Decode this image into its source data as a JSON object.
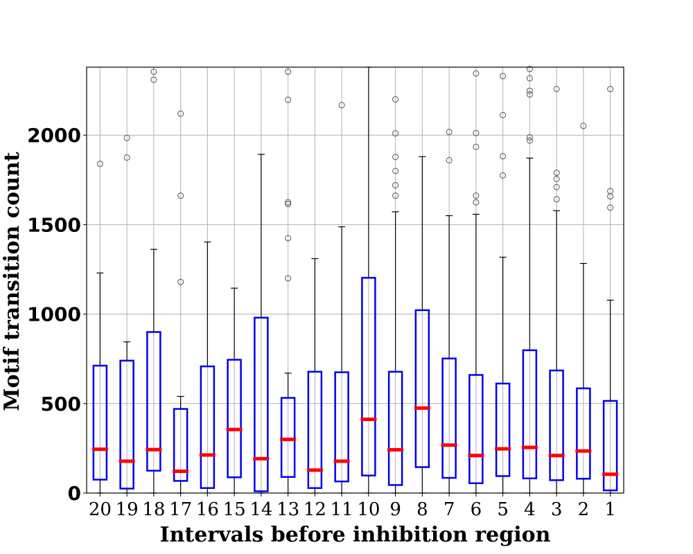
{
  "chart_data": {
    "type": "box",
    "xlabel": "Intervals before inhibition region",
    "ylabel": "Motif transition count",
    "ylim": [
      0,
      2380
    ],
    "yticks": [
      0,
      500,
      1000,
      1500,
      2000
    ],
    "grid": true,
    "colors": {
      "box": "#0000ee",
      "median": "#ff0000",
      "whisker": "#000000",
      "outlier": "#555555",
      "grid": "#b0b0b0"
    },
    "categories": [
      "20",
      "19",
      "18",
      "17",
      "16",
      "15",
      "14",
      "13",
      "12",
      "11",
      "10",
      "9",
      "8",
      "7",
      "6",
      "5",
      "4",
      "3",
      "2",
      "1"
    ],
    "boxes": [
      {
        "label": "20",
        "whislo": 0,
        "q1": 75,
        "median": 245,
        "q3": 712,
        "whishi": 1230,
        "outliers": [
          1840
        ]
      },
      {
        "label": "19",
        "whislo": 0,
        "q1": 25,
        "median": 178,
        "q3": 740,
        "whishi": 845,
        "outliers": [
          1875,
          1985
        ]
      },
      {
        "label": "18",
        "whislo": 0,
        "q1": 125,
        "median": 243,
        "q3": 900,
        "whishi": 1362,
        "outliers": [
          2310,
          2355
        ]
      },
      {
        "label": "17",
        "whislo": 0,
        "q1": 68,
        "median": 122,
        "q3": 470,
        "whishi": 540,
        "outliers": [
          1180,
          1662,
          2120
        ]
      },
      {
        "label": "16",
        "whislo": 0,
        "q1": 28,
        "median": 213,
        "q3": 708,
        "whishi": 1403,
        "outliers": []
      },
      {
        "label": "15",
        "whislo": 0,
        "q1": 88,
        "median": 355,
        "q3": 745,
        "whishi": 1145,
        "outliers": []
      },
      {
        "label": "14",
        "whislo": 0,
        "q1": 10,
        "median": 192,
        "q3": 980,
        "whishi": 1893,
        "outliers": []
      },
      {
        "label": "13",
        "whislo": 0,
        "q1": 90,
        "median": 300,
        "q3": 532,
        "whishi": 670,
        "outliers": [
          1200,
          1425,
          1615,
          1625,
          2198,
          2355
        ]
      },
      {
        "label": "12",
        "whislo": 0,
        "q1": 28,
        "median": 128,
        "q3": 678,
        "whishi": 1310,
        "outliers": []
      },
      {
        "label": "11",
        "whislo": 0,
        "q1": 65,
        "median": 178,
        "q3": 675,
        "whishi": 1488,
        "outliers": [
          2168
        ]
      },
      {
        "label": "10",
        "whislo": 0,
        "q1": 98,
        "median": 412,
        "q3": 1203,
        "whishi": 2400,
        "outliers": []
      },
      {
        "label": "9",
        "whislo": 0,
        "q1": 45,
        "median": 242,
        "q3": 678,
        "whishi": 1572,
        "outliers": [
          1662,
          1720,
          1800,
          1878,
          2010,
          2200
        ]
      },
      {
        "label": "8",
        "whislo": 0,
        "q1": 145,
        "median": 475,
        "q3": 1022,
        "whishi": 1880,
        "outliers": []
      },
      {
        "label": "7",
        "whislo": 0,
        "q1": 85,
        "median": 268,
        "q3": 752,
        "whishi": 1550,
        "outliers": [
          1860,
          2018
        ]
      },
      {
        "label": "6",
        "whislo": 0,
        "q1": 55,
        "median": 210,
        "q3": 660,
        "whishi": 1558,
        "outliers": [
          1625,
          1662,
          1935,
          2012,
          2345
        ]
      },
      {
        "label": "5",
        "whislo": 0,
        "q1": 95,
        "median": 247,
        "q3": 612,
        "whishi": 1318,
        "outliers": [
          1775,
          1882,
          2112,
          2330
        ]
      },
      {
        "label": "4",
        "whislo": 0,
        "q1": 82,
        "median": 255,
        "q3": 798,
        "whishi": 1872,
        "outliers": [
          1970,
          1988,
          2228,
          2248,
          2318,
          2370
        ]
      },
      {
        "label": "3",
        "whislo": 0,
        "q1": 72,
        "median": 210,
        "q3": 685,
        "whishi": 1578,
        "outliers": [
          1642,
          1710,
          1755,
          1790,
          2258
        ]
      },
      {
        "label": "2",
        "whislo": 0,
        "q1": 80,
        "median": 235,
        "q3": 585,
        "whishi": 1283,
        "outliers": [
          2052
        ]
      },
      {
        "label": "1",
        "whislo": 0,
        "q1": 15,
        "median": 105,
        "q3": 515,
        "whishi": 1078,
        "outliers": [
          1595,
          1658,
          1688,
          2258
        ]
      }
    ]
  }
}
